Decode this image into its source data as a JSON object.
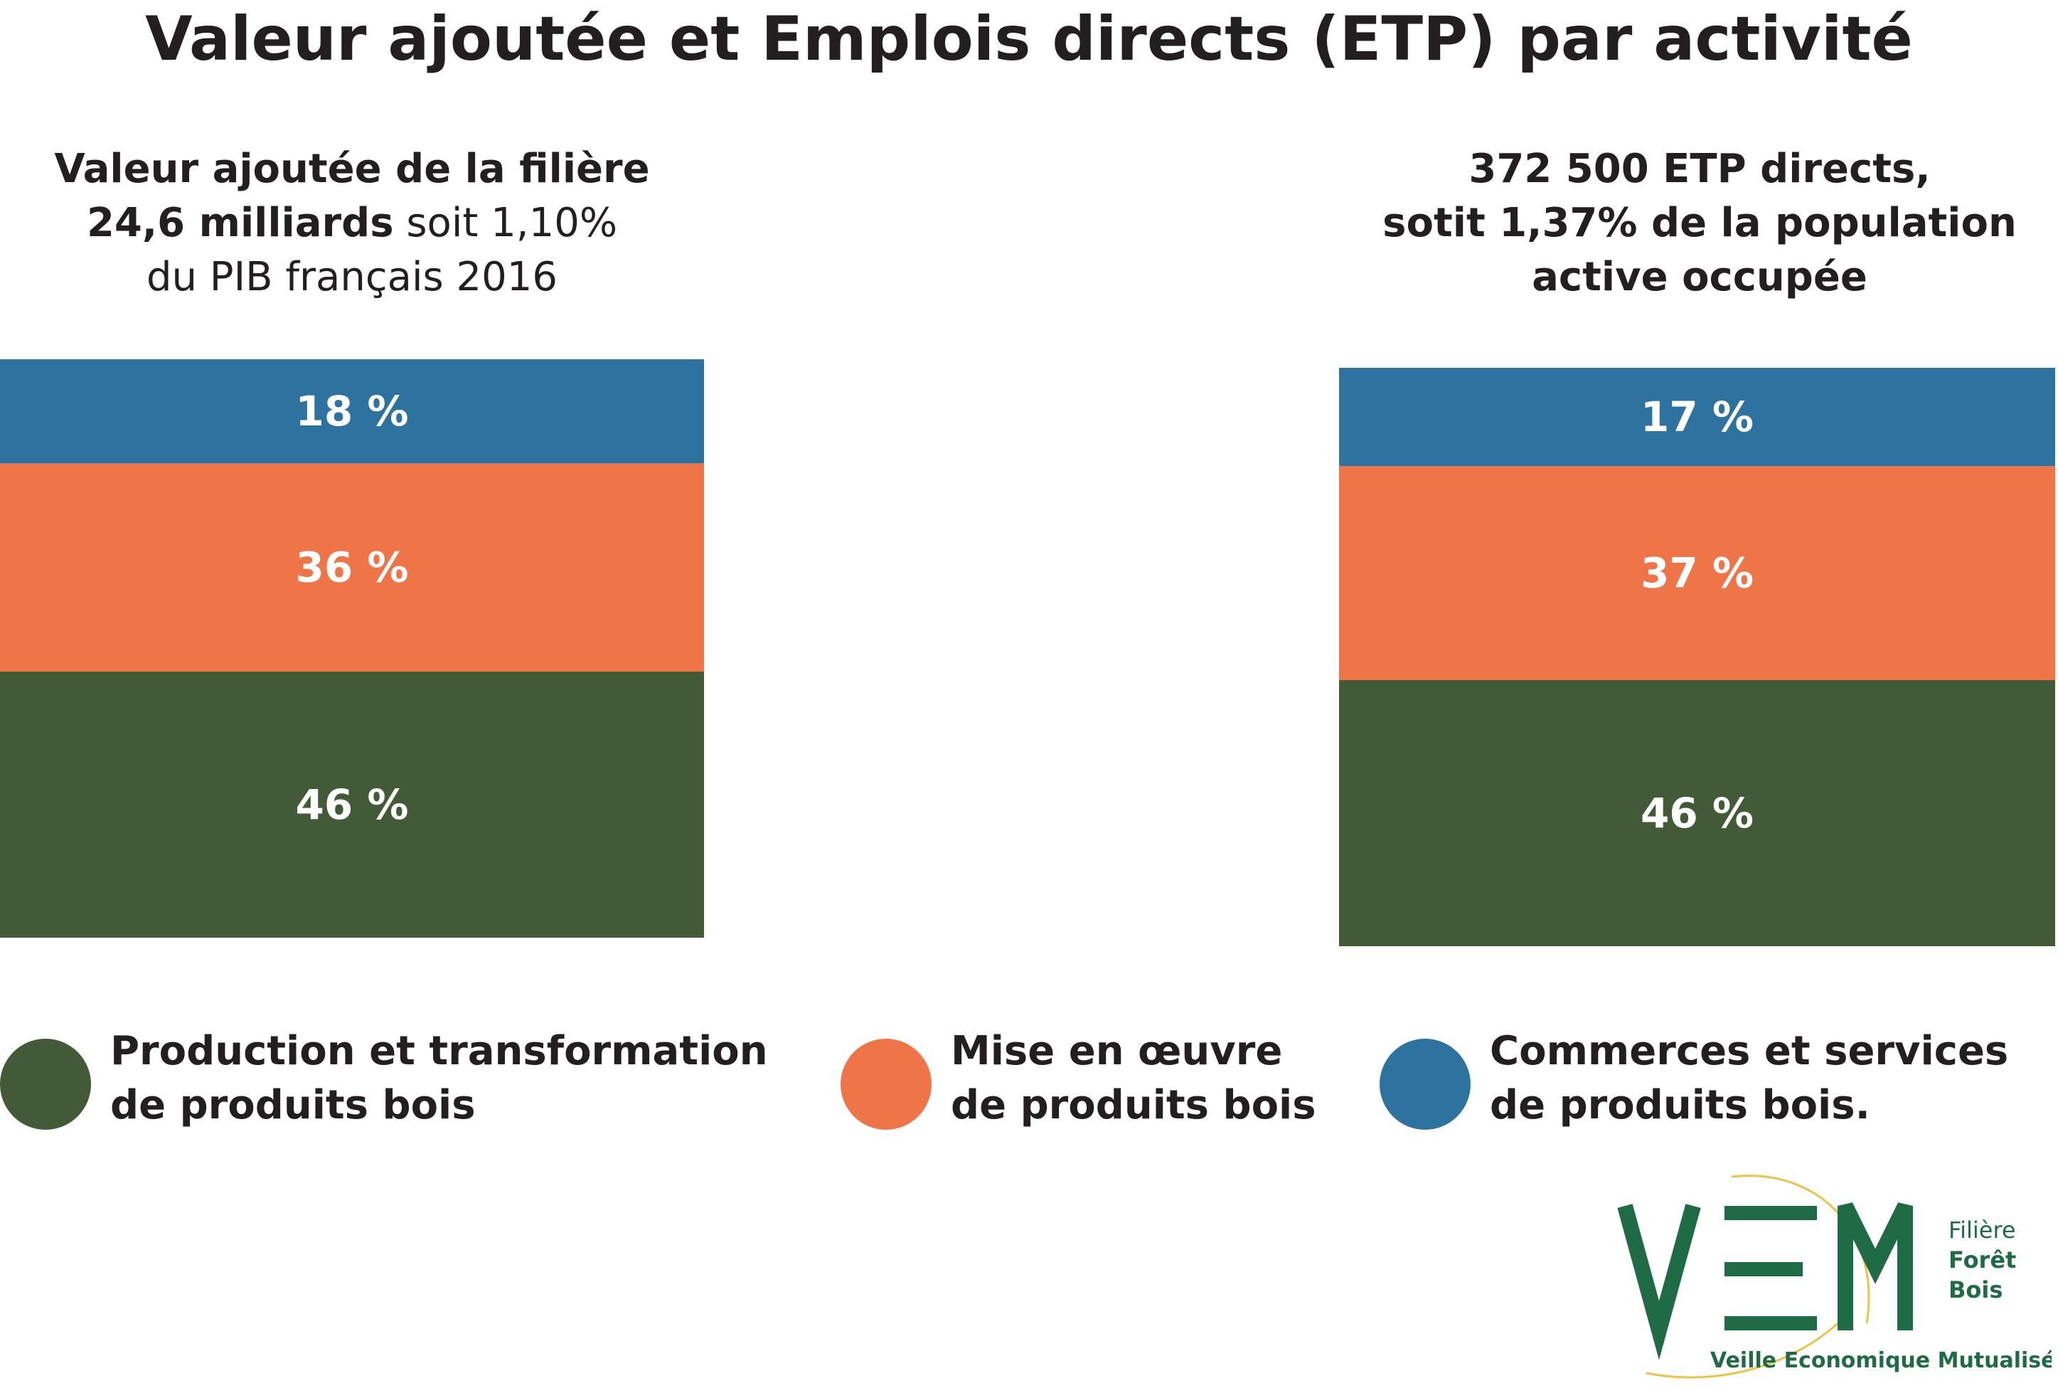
{
  "title": "Valeur ajoutée et Emplois directs (ETP) par activité",
  "left_header": {
    "line1": "Valeur ajoutée de la filière",
    "line2_bold": "24,6 milliards",
    "line2_rest": " soit 1,10%",
    "line3": "du PIB français 2016"
  },
  "right_header": {
    "line1": "372 500 ETP directs,",
    "line2": "sotit 1,37% de la population",
    "line3": "active occupée"
  },
  "chart_data": [
    {
      "type": "bar",
      "stacked": true,
      "series": [
        {
          "name": "Production et transformation de produits bois",
          "color": "#425a35",
          "value": 46,
          "label": "46 %"
        },
        {
          "name": "Mise en œuvre de produits bois",
          "color": "#ef7549",
          "value": 36,
          "label": "36 %"
        },
        {
          "name": "Commerces et services de produits bois.",
          "color": "#2e739f",
          "value": 18,
          "label": "18 %"
        }
      ]
    },
    {
      "type": "bar",
      "stacked": true,
      "series": [
        {
          "name": "Production et transformation de produits bois",
          "color": "#425a35",
          "value": 46,
          "label": "46 %"
        },
        {
          "name": "Mise en œuvre de produits bois",
          "color": "#ef7549",
          "value": 37,
          "label": "37 %"
        },
        {
          "name": "Commerces et services de produits bois.",
          "color": "#2e739f",
          "value": 17,
          "label": "17 %"
        }
      ]
    }
  ],
  "legend": [
    {
      "line1": "Production et transformation",
      "line2": "de produits bois",
      "color": "#425a35"
    },
    {
      "line1": "Mise en œuvre",
      "line2": "de produits bois",
      "color": "#ef7549"
    },
    {
      "line1": "Commerces et services",
      "line2": "de produits bois.",
      "color": "#2e739f"
    }
  ],
  "logo": {
    "letters": "VEM",
    "side": [
      "Filière",
      "Forêt",
      "Bois"
    ],
    "tagline": "Veille Economique Mutualisée",
    "color": "#1e6b45",
    "accent": "#e8c547"
  }
}
